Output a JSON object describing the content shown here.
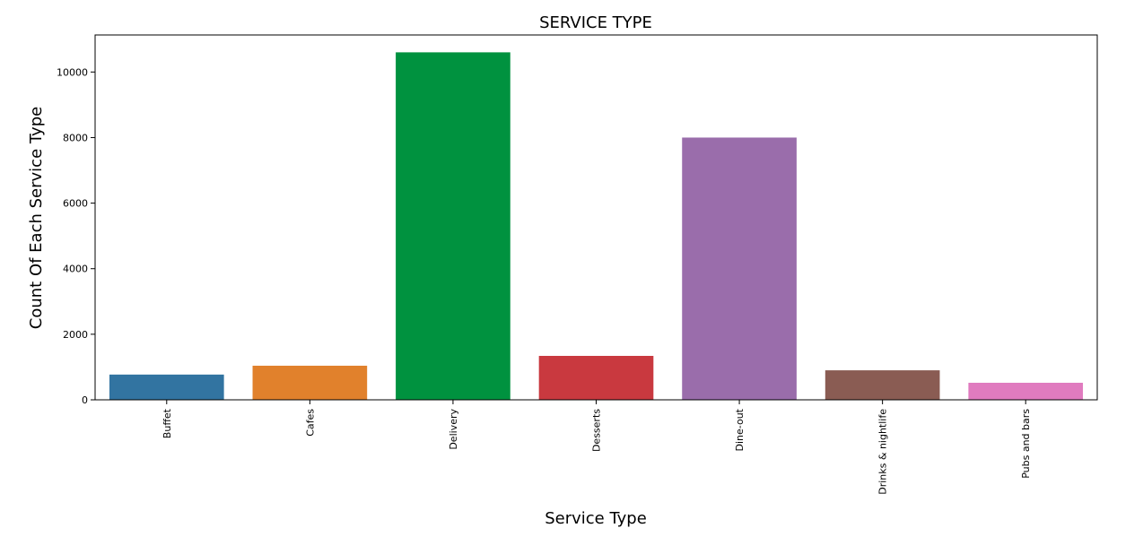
{
  "chart_data": {
    "type": "bar",
    "title": "SERVICE TYPE",
    "xlabel": "Service Type",
    "ylabel": "Count Of Each Service Type",
    "categories": [
      "Buffet",
      "Cafes",
      "Delivery",
      "Desserts",
      "Dine-out",
      "Drinks & nightlife",
      "Pubs and bars"
    ],
    "values": [
      770,
      1040,
      10600,
      1340,
      8000,
      900,
      520
    ],
    "colors": [
      "#3274a1",
      "#e1812c",
      "#00923f",
      "#c9393f",
      "#9a6dab",
      "#8a5c53",
      "#e07bbf"
    ],
    "ylim": [
      0,
      11130
    ],
    "yticks": [
      0,
      2000,
      4000,
      6000,
      8000,
      10000
    ],
    "grid": false,
    "legend": "none"
  }
}
